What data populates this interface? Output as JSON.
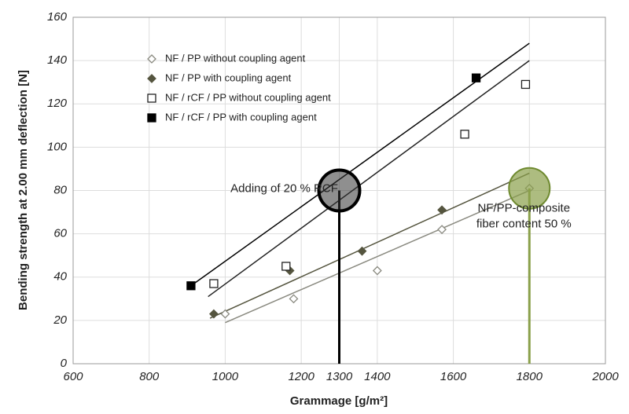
{
  "chart_data": {
    "type": "scatter",
    "x_label": "Grammage [g/m²]",
    "y_label": "Bending strength at 2.00 mm deflection [N]",
    "xlim": [
      600,
      2000
    ],
    "ylim": [
      0,
      160
    ],
    "xticks": [
      600,
      800,
      1000,
      1200,
      1300,
      1400,
      1600,
      1800,
      2000
    ],
    "yticks": [
      0,
      20,
      40,
      60,
      80,
      100,
      120,
      140,
      160
    ],
    "grid": true,
    "legend": "upper left",
    "series": [
      {
        "name": "NF / PP without coupling agent",
        "color": "#8a8a80",
        "marker": "diamond",
        "filled": false,
        "x": [
          1000,
          1180,
          1400,
          1570,
          1800
        ],
        "values": [
          23,
          30,
          43,
          62,
          81
        ],
        "trend_x": [
          1000,
          1800
        ],
        "trend_values": [
          19,
          80
        ]
      },
      {
        "name": "NF / PP with coupling agent",
        "color": "#55553f",
        "marker": "diamond",
        "filled": true,
        "x": [
          970,
          1170,
          1360,
          1570
        ],
        "values": [
          23,
          43,
          52,
          71
        ],
        "trend_x": [
          960,
          1800
        ],
        "trend_values": [
          21,
          88
        ]
      },
      {
        "name": "NF / rCF / PP without coupling agent",
        "color": "#222222",
        "marker": "square",
        "filled": false,
        "x": [
          970,
          1160,
          1630,
          1790
        ],
        "values": [
          37,
          45,
          106,
          129
        ],
        "trend_x": [
          955,
          1800
        ],
        "trend_values": [
          31,
          140
        ]
      },
      {
        "name": "NF / rCF / PP with coupling agent",
        "color": "#000000",
        "marker": "square",
        "filled": true,
        "x": [
          910,
          1660
        ],
        "values": [
          36,
          132
        ],
        "trend_x": [
          910,
          1800
        ],
        "trend_values": [
          36,
          148
        ]
      }
    ],
    "annotations": [
      {
        "text": [
          "Adding of 20 % RCF"
        ],
        "x": 1300,
        "y": 80,
        "color": "#333333"
      },
      {
        "text": [
          "NF/PP-composite",
          "fiber content  50 %"
        ],
        "x": 1800,
        "y": 81,
        "color": "#8aa04a"
      }
    ]
  }
}
